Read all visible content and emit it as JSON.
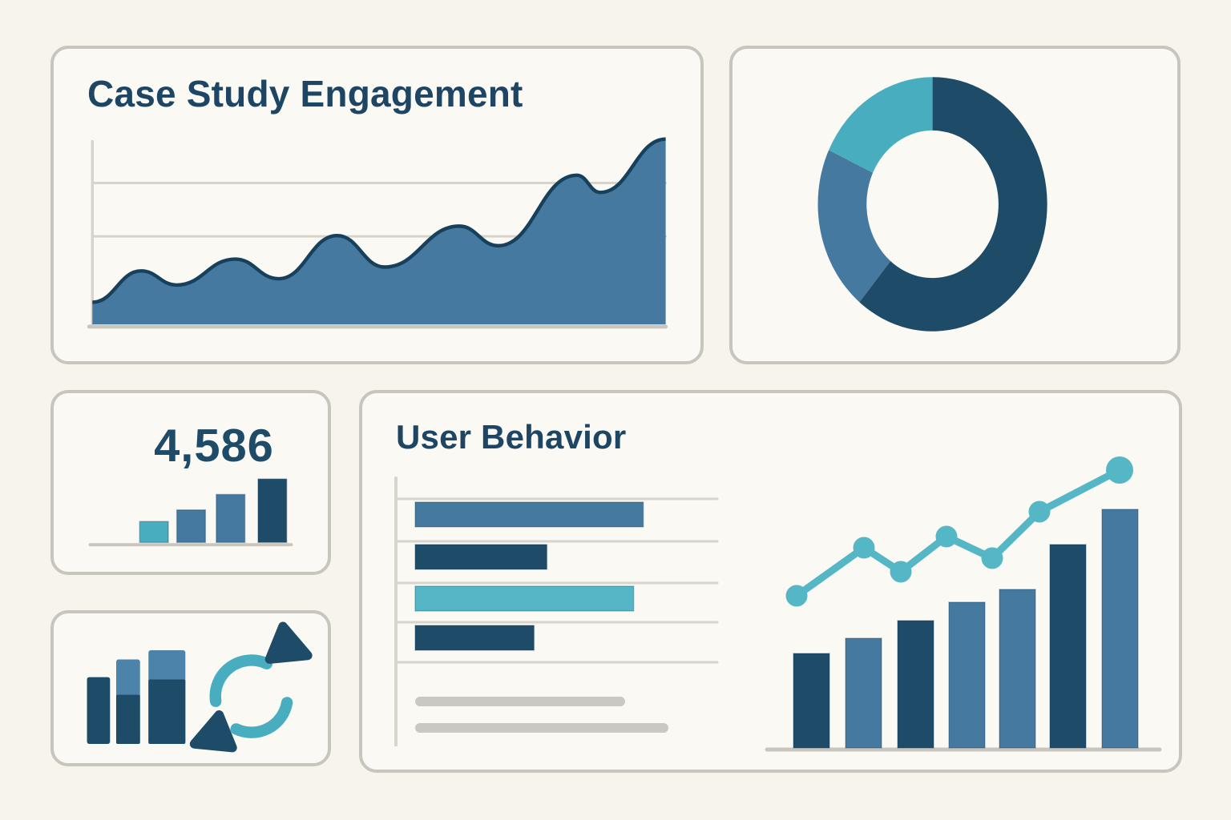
{
  "palette": {
    "bg": "#f7f4ec",
    "panel_bg": "#fbf9f3",
    "panel_border": "#c8c5be",
    "navy": "#1d4b68",
    "navy_dark": "#16405b",
    "blue": "#45799f",
    "blue_light": "#4b83ab",
    "teal": "#48aebf",
    "teal_light": "#55b7c6",
    "grid_gray": "#d7d4cc",
    "baseline_gray": "#c9c6bf",
    "placeholder_gray": "#cac8c3",
    "title_navy": "#1e4664"
  },
  "panels": {
    "engagement": {
      "title": "Case Study Engagement"
    },
    "donut": {
      "name": "traffic-share-donut"
    },
    "stat": {
      "value": "4,586"
    },
    "icon_tile": {
      "icons": [
        "mini-bar-chart-icon",
        "sync-arrows-icon"
      ]
    },
    "behavior": {
      "title": "User Behavior"
    }
  },
  "chart_data": [
    {
      "id": "engagement-area",
      "type": "area",
      "title": "Case Study Engagement",
      "x_pct": [
        0,
        8.5,
        14.7,
        24.9,
        32.5,
        42.7,
        51.0,
        64.0,
        70.8,
        84.5,
        88.6,
        100
      ],
      "y_pct": [
        11.9,
        28.8,
        21.2,
        35.2,
        24.6,
        47.9,
        30.9,
        53.0,
        42.4,
        80.5,
        71.2,
        100
      ],
      "gridlines_y_pct": [
        76.3,
        47.5
      ],
      "fill": "blue",
      "stroke": "navy_dark",
      "xlabel": "",
      "ylabel": "",
      "legend": "none",
      "grid": "horizontal"
    },
    {
      "id": "share-donut",
      "type": "pie",
      "style": "donut",
      "start_angle_deg": 0,
      "clockwise": true,
      "segments": [
        {
          "label": "segment-1",
          "value": 61,
          "color": "navy"
        },
        {
          "label": "segment-2",
          "value": 21,
          "color": "blue"
        },
        {
          "label": "segment-3",
          "value": 18,
          "color": "teal"
        }
      ]
    },
    {
      "id": "stat-mini-bars",
      "type": "bar",
      "value_label": "4,586",
      "values": [
        27,
        42,
        62,
        82
      ],
      "colors": [
        "teal",
        "blue",
        "blue",
        "navy"
      ],
      "grid": "off"
    },
    {
      "id": "behavior-h-bars",
      "type": "bar",
      "orientation": "horizontal",
      "values_pct": [
        71,
        41,
        68,
        37
      ],
      "colors": [
        "blue",
        "navy",
        "teal_light",
        "navy"
      ],
      "placeholder_line_lengths": [
        262,
        316
      ],
      "grid": "horizontal"
    },
    {
      "id": "behavior-combo",
      "type": "bar+line",
      "bar_values": [
        118,
        137,
        159,
        182,
        198,
        254,
        298
      ],
      "bar_colors": [
        "navy",
        "blue",
        "navy",
        "blue",
        "blue",
        "navy",
        "blue"
      ],
      "line_values": [
        190,
        250,
        220,
        264,
        237,
        295,
        347
      ],
      "line_x": [
        47,
        131,
        177,
        234,
        291,
        350,
        450
      ],
      "line_color": "teal_light",
      "marker": "circle"
    }
  ]
}
